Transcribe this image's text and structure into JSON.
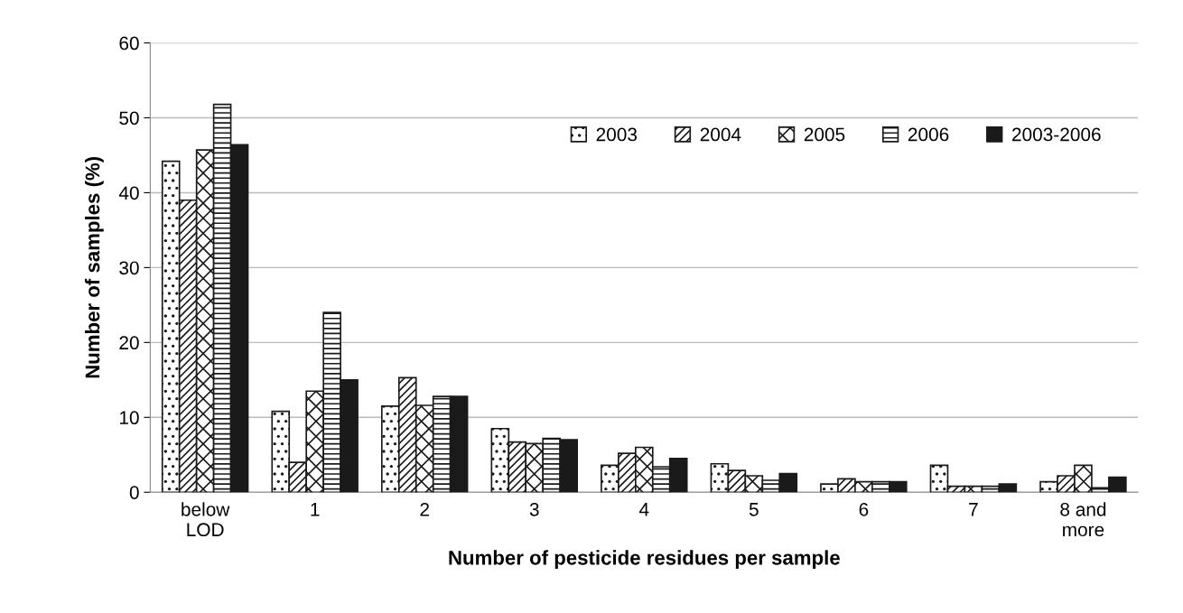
{
  "chart_data": {
    "type": "bar",
    "xlabel": "Number of pesticide residues per sample",
    "ylabel": "Number of samples (%)",
    "categories": [
      "below\nLOD",
      "1",
      "2",
      "3",
      "4",
      "5",
      "6",
      "7",
      "8 and\nmore"
    ],
    "series": [
      {
        "name": "2003",
        "color": "#1a1a1a",
        "values": [
          44.2,
          10.8,
          11.5,
          8.5,
          3.6,
          3.8,
          1.1,
          3.6,
          1.4
        ]
      },
      {
        "name": "2004",
        "color": "#1a1a1a",
        "values": [
          39.0,
          4.0,
          15.3,
          6.7,
          5.2,
          2.9,
          1.8,
          0.8,
          2.2
        ]
      },
      {
        "name": "2005",
        "color": "#1a1a1a",
        "values": [
          45.7,
          13.5,
          11.6,
          6.5,
          6.0,
          2.2,
          1.4,
          0.8,
          3.6
        ]
      },
      {
        "name": "2006",
        "color": "#1a1a1a",
        "values": [
          51.8,
          24.0,
          12.8,
          7.2,
          3.4,
          1.6,
          1.4,
          0.8,
          0.6
        ]
      },
      {
        "name": "2003-2006",
        "color": "#1a1a1a",
        "values": [
          46.4,
          15.0,
          12.8,
          7.0,
          4.5,
          2.5,
          1.4,
          1.1,
          2.0
        ]
      }
    ],
    "ylim": [
      0,
      60
    ],
    "yticks": [
      0,
      10,
      20,
      30,
      40,
      50,
      60
    ],
    "grid": "y",
    "legend": "top right"
  }
}
